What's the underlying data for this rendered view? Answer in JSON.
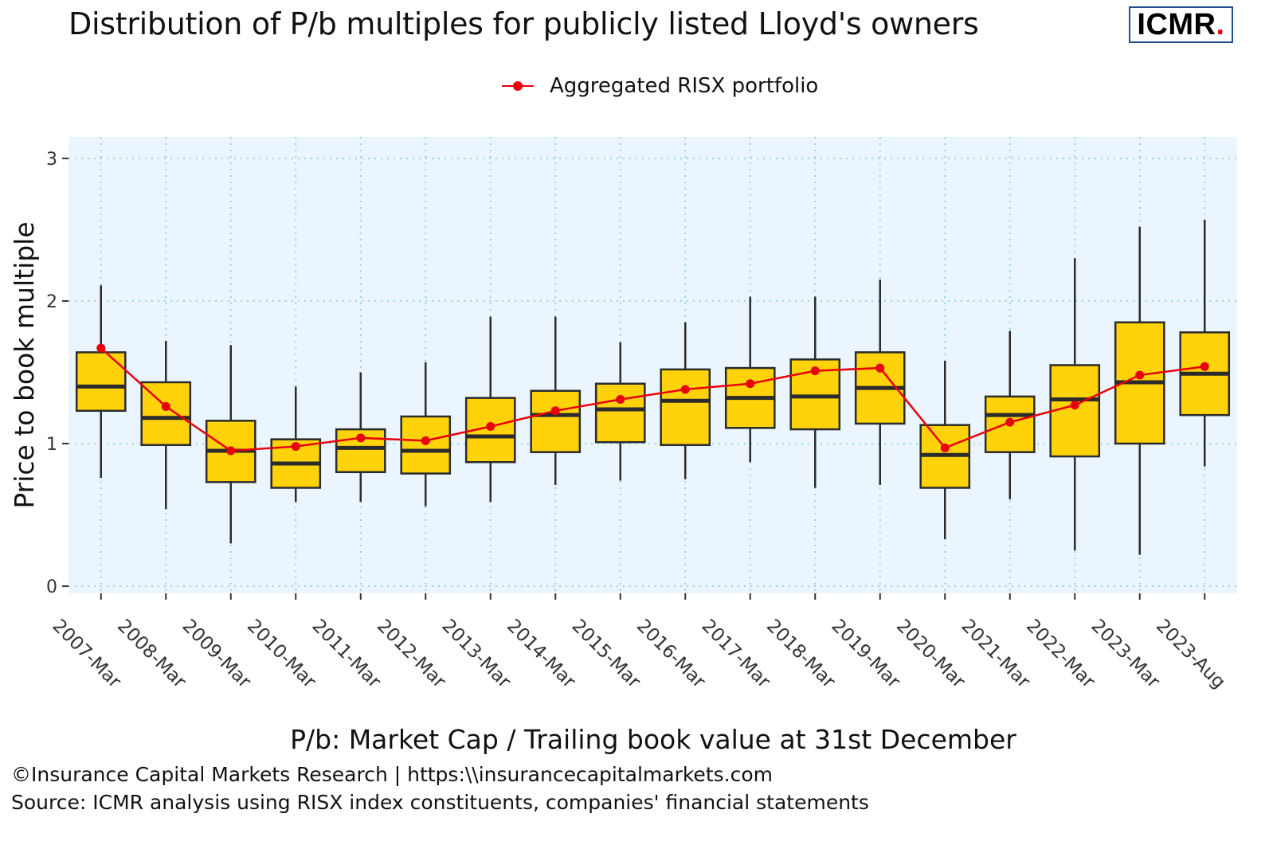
{
  "title": "Distribution of P/b multiples for publicly listed Lloyd's owners",
  "logo": {
    "text": "ICMR",
    "dot": ".",
    "border_color": "#1f4e8c",
    "dot_color": "#e8000b"
  },
  "legend": {
    "label": "Aggregated RISX portfolio",
    "color": "#e8000b"
  },
  "captions": {
    "copyright": "©Insurance Capital Markets Research | https:\\\\insurancecapitalmarkets.com",
    "source": "Source: ICMR analysis using RISX index constituents, companies' financial statements"
  },
  "chart_data": {
    "type": "boxplot",
    "xlabel": "P/b: Market Cap / Trailing book value at 31st December",
    "ylabel": "Price to book multiple",
    "ylim": [
      -0.05,
      3.15
    ],
    "yticks": [
      0,
      1,
      2,
      3
    ],
    "grid": "dotted",
    "legend_position": "top",
    "colors": {
      "box_fill": "#ffd20a",
      "box_stroke": "#2b2b2b",
      "line": "#e8000b",
      "panel_bg": "#eaf5fd",
      "grid": "#9fd2dc"
    },
    "categories": [
      "2007-Mar",
      "2008-Mar",
      "2009-Mar",
      "2010-Mar",
      "2011-Mar",
      "2012-Mar",
      "2013-Mar",
      "2014-Mar",
      "2015-Mar",
      "2016-Mar",
      "2017-Mar",
      "2018-Mar",
      "2019-Mar",
      "2020-Mar",
      "2021-Mar",
      "2022-Mar",
      "2023-Mar",
      "2023-Aug"
    ],
    "boxes": [
      {
        "min": 0.76,
        "q1": 1.23,
        "median": 1.4,
        "q3": 1.64,
        "max": 2.11
      },
      {
        "min": 0.54,
        "q1": 0.99,
        "median": 1.18,
        "q3": 1.43,
        "max": 1.72
      },
      {
        "min": 0.3,
        "q1": 0.73,
        "median": 0.95,
        "q3": 1.16,
        "max": 1.69
      },
      {
        "min": 0.59,
        "q1": 0.69,
        "median": 0.86,
        "q3": 1.03,
        "max": 1.4
      },
      {
        "min": 0.59,
        "q1": 0.8,
        "median": 0.97,
        "q3": 1.1,
        "max": 1.5
      },
      {
        "min": 0.56,
        "q1": 0.79,
        "median": 0.95,
        "q3": 1.19,
        "max": 1.57
      },
      {
        "min": 0.59,
        "q1": 0.87,
        "median": 1.05,
        "q3": 1.32,
        "max": 1.89
      },
      {
        "min": 0.71,
        "q1": 0.94,
        "median": 1.2,
        "q3": 1.37,
        "max": 1.89
      },
      {
        "min": 0.74,
        "q1": 1.01,
        "median": 1.24,
        "q3": 1.42,
        "max": 1.71
      },
      {
        "min": 0.75,
        "q1": 0.99,
        "median": 1.3,
        "q3": 1.52,
        "max": 1.85
      },
      {
        "min": 0.87,
        "q1": 1.11,
        "median": 1.32,
        "q3": 1.53,
        "max": 2.03
      },
      {
        "min": 0.69,
        "q1": 1.1,
        "median": 1.33,
        "q3": 1.59,
        "max": 2.03
      },
      {
        "min": 0.71,
        "q1": 1.14,
        "median": 1.39,
        "q3": 1.64,
        "max": 2.15
      },
      {
        "min": 0.33,
        "q1": 0.69,
        "median": 0.92,
        "q3": 1.13,
        "max": 1.58
      },
      {
        "min": 0.61,
        "q1": 0.94,
        "median": 1.2,
        "q3": 1.33,
        "max": 1.79
      },
      {
        "min": 0.25,
        "q1": 0.91,
        "median": 1.31,
        "q3": 1.55,
        "max": 2.3
      },
      {
        "min": 0.22,
        "q1": 1.0,
        "median": 1.43,
        "q3": 1.85,
        "max": 2.52
      },
      {
        "min": 0.84,
        "q1": 1.2,
        "median": 1.49,
        "q3": 1.78,
        "max": 2.57
      }
    ],
    "series": [
      {
        "name": "Aggregated RISX portfolio",
        "values": [
          1.67,
          1.26,
          0.95,
          0.98,
          1.04,
          1.02,
          1.12,
          1.23,
          1.31,
          1.38,
          1.42,
          1.51,
          1.53,
          0.97,
          1.15,
          1.27,
          1.48,
          1.54
        ]
      }
    ]
  }
}
